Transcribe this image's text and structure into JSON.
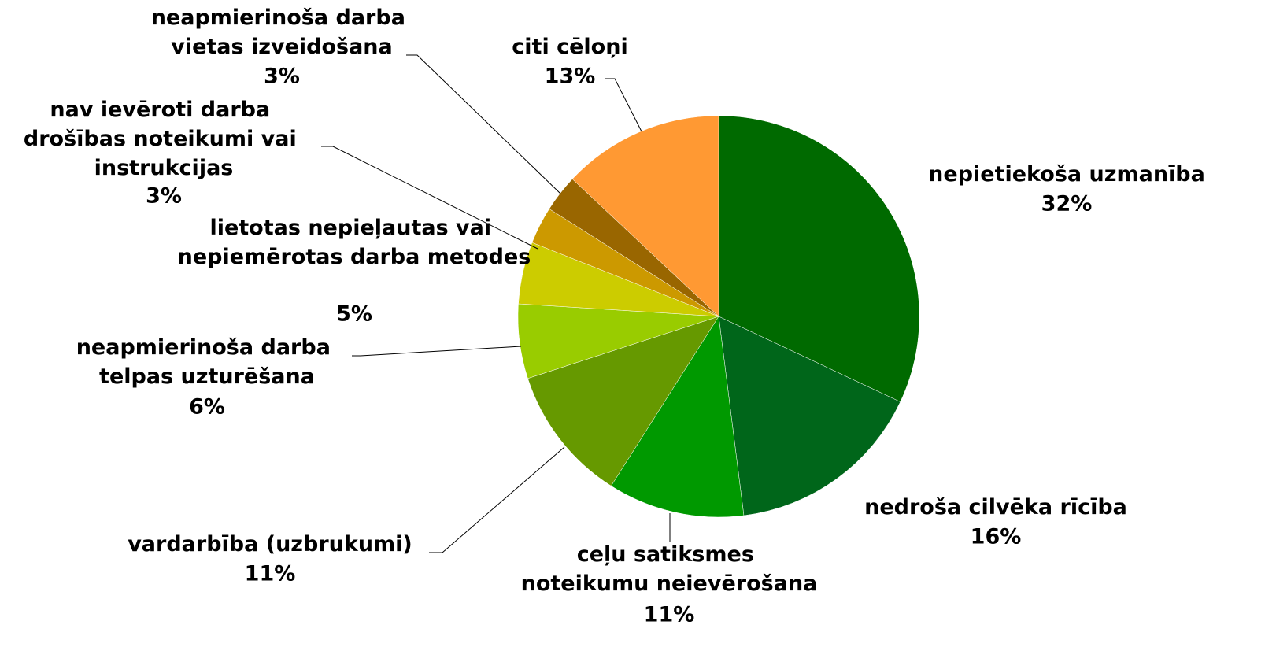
{
  "chart_data": {
    "type": "pie",
    "categories": [
      "nepietiekoša uzmanība",
      "nedroša cilvēka rīcība",
      "ceļu satiksmes noteikumu neievērošana",
      "vardarbība (uzbrukumi)",
      "neapmierinoša darba telpas uzturēšana",
      "lietotas nepieļautas vai nepiemērotas darba metodes",
      "nav ievēroti darba drošības noteikumi vai instrukcijas",
      "neapmierinoša darba vietas izveidošana",
      "citi cēloņi"
    ],
    "values": [
      32,
      16,
      11,
      11,
      6,
      5,
      3,
      3,
      13
    ],
    "value_labels": [
      "32%",
      "16%",
      "11%",
      "11%",
      "6%",
      "5%",
      "3%",
      "3%",
      "13%"
    ],
    "colors": [
      "#006a00",
      "#00661a",
      "#009900",
      "#669900",
      "#99cc00",
      "#cccc00",
      "#cc9900",
      "#996600",
      "#ff9933"
    ]
  }
}
